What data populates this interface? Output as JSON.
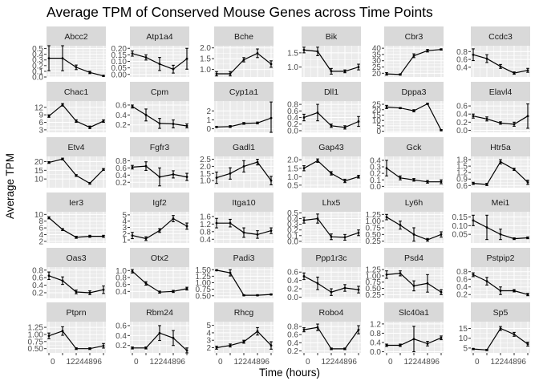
{
  "chart_data": {
    "type": "line",
    "title": "Average TPM of Conserved Mouse Genes across Time Points",
    "xlabel": "Time (hours)",
    "ylabel": "Average TPM",
    "x": [
      0,
      12,
      24,
      48,
      96
    ],
    "x_tick_labels": [
      "0",
      "12",
      "24",
      "48",
      "96"
    ],
    "facet_layout": {
      "rows": 6,
      "cols": 6
    },
    "styles": {
      "strip_bg": "#d9d9d9",
      "panel_bg": "#ebebeb",
      "grid": "#ffffff",
      "line": "#000000"
    },
    "panels": [
      {
        "gene": "Abcc2",
        "ylim": [
          0,
          0.55
        ],
        "yticks": [
          0.0,
          0.1,
          0.2,
          0.3,
          0.4,
          0.5
        ],
        "yticklabels": [
          "0.0",
          "0.1",
          "0.2",
          "0.3",
          "0.4",
          "0.5"
        ],
        "values": [
          0.33,
          0.33,
          0.17,
          0.08,
          0.02
        ],
        "errors": [
          0.22,
          0.22,
          0.04,
          0.02,
          0.01
        ]
      },
      {
        "gene": "Atp1a4",
        "ylim": [
          -0.02,
          0.22
        ],
        "yticks": [
          0.0,
          0.05,
          0.1,
          0.15,
          0.2
        ],
        "yticklabels": [
          "0.00",
          "0.05",
          "0.10",
          "0.15",
          "0.20"
        ],
        "values": [
          0.16,
          0.13,
          0.08,
          0.04,
          0.12
        ],
        "errors": [
          0.02,
          0.02,
          0.05,
          0.03,
          0.08
        ]
      },
      {
        "gene": "Bche",
        "ylim": [
          0.65,
          2.1
        ],
        "yticks": [
          1.0,
          1.5,
          2.0
        ],
        "yticklabels": [
          "1.0",
          "1.5",
          "2.0"
        ],
        "values": [
          0.8,
          0.8,
          1.45,
          1.75,
          1.25
        ],
        "errors": [
          0.1,
          0.1,
          0.1,
          0.2,
          0.15
        ]
      },
      {
        "gene": "Bik",
        "ylim": [
          0.65,
          1.75
        ],
        "yticks": [
          1.0,
          1.5
        ],
        "yticklabels": [
          "1.0",
          "1.5"
        ],
        "values": [
          1.6,
          1.55,
          0.85,
          0.85,
          1.0
        ],
        "errors": [
          0.1,
          0.15,
          0.1,
          0.05,
          0.1
        ]
      },
      {
        "gene": "Cbr3",
        "ylim": [
          17,
          42
        ],
        "yticks": [
          20,
          25,
          30,
          35,
          40
        ],
        "yticklabels": [
          "20",
          "25",
          "30",
          "35",
          "40"
        ],
        "values": [
          19.5,
          19,
          34,
          38,
          39
        ],
        "errors": [
          1,
          0.5,
          1.5,
          1,
          0.5
        ]
      },
      {
        "gene": "Ccdc3",
        "ylim": [
          0.15,
          0.95
        ],
        "yticks": [
          0.4,
          0.6,
          0.8
        ],
        "yticklabels": [
          "0.4",
          "0.6",
          "0.8"
        ],
        "values": [
          0.72,
          0.62,
          0.42,
          0.25,
          0.32
        ],
        "errors": [
          0.15,
          0.1,
          0.05,
          0.03,
          0.05
        ]
      },
      {
        "gene": "Chac1",
        "ylim": [
          2,
          14.5
        ],
        "yticks": [
          3,
          6,
          9,
          12
        ],
        "yticklabels": [
          "3",
          "6",
          "9",
          "12"
        ],
        "values": [
          8.5,
          13,
          6.5,
          4,
          6.5
        ],
        "errors": [
          0.5,
          0.5,
          0.5,
          0.5,
          0.5
        ]
      },
      {
        "gene": "Cpm",
        "ylim": [
          0.05,
          0.68
        ],
        "yticks": [
          0.2,
          0.4,
          0.6
        ],
        "yticklabels": [
          "0.2",
          "0.4",
          "0.6"
        ],
        "values": [
          0.57,
          0.4,
          0.23,
          0.22,
          0.18
        ],
        "errors": [
          0.03,
          0.12,
          0.1,
          0.08,
          0.04
        ]
      },
      {
        "gene": "Cyp1a1",
        "ylim": [
          -0.4,
          3.1
        ],
        "yticks": [
          0,
          1,
          2
        ],
        "yticklabels": [
          "0",
          "1",
          "2"
        ],
        "values": [
          0.2,
          0.25,
          0.6,
          0.65,
          1.2
        ],
        "errors": [
          0.05,
          0.1,
          0.1,
          0.1,
          1.8
        ]
      },
      {
        "gene": "Dll1",
        "ylim": [
          -0.05,
          0.9
        ],
        "yticks": [
          0.0,
          0.2,
          0.4,
          0.6,
          0.8
        ],
        "yticklabels": [
          "0.0",
          "0.2",
          "0.4",
          "0.6",
          "0.8"
        ],
        "values": [
          0.4,
          0.55,
          0.15,
          0.1,
          0.28
        ],
        "errors": [
          0.1,
          0.25,
          0.05,
          0.05,
          0.15
        ]
      },
      {
        "gene": "Dppa3",
        "ylim": [
          -1,
          28
        ],
        "yticks": [
          0,
          5,
          10,
          15,
          20,
          25
        ],
        "yticklabels": [
          "0",
          "5",
          "10",
          "15",
          "20",
          "25"
        ],
        "values": [
          22.5,
          21.5,
          19,
          25.5,
          1
        ],
        "errors": [
          1.5,
          0.5,
          1,
          0.5,
          0.5
        ]
      },
      {
        "gene": "Elavl4",
        "ylim": [
          -0.05,
          0.72
        ],
        "yticks": [
          0.0,
          0.2,
          0.4,
          0.6
        ],
        "yticklabels": [
          "0.0",
          "0.2",
          "0.4",
          "0.6"
        ],
        "values": [
          0.35,
          0.28,
          0.18,
          0.15,
          0.35
        ],
        "errors": [
          0.05,
          0.05,
          0.03,
          0.05,
          0.3
        ]
      },
      {
        "gene": "Etv4",
        "ylim": [
          5,
          23
        ],
        "yticks": [
          10,
          15,
          20
        ],
        "yticklabels": [
          "10",
          "15",
          "20"
        ],
        "values": [
          19.5,
          21.5,
          12,
          7.5,
          15.5
        ],
        "errors": [
          0.5,
          0.5,
          0.5,
          0.5,
          0.5
        ]
      },
      {
        "gene": "Fgfr3",
        "ylim": [
          0.05,
          0.92
        ],
        "yticks": [
          0.2,
          0.4,
          0.6,
          0.8
        ],
        "yticklabels": [
          "0.2",
          "0.4",
          "0.6",
          "0.8"
        ],
        "values": [
          0.62,
          0.65,
          0.35,
          0.42,
          0.35
        ],
        "errors": [
          0.05,
          0.12,
          0.25,
          0.1,
          0.1
        ]
      },
      {
        "gene": "Gadl1",
        "ylim": [
          0.5,
          2.7
        ],
        "yticks": [
          1.0,
          1.5,
          2.0,
          2.5
        ],
        "yticklabels": [
          "1.0",
          "1.5",
          "2.0",
          "2.5"
        ],
        "values": [
          1.2,
          1.5,
          2.0,
          2.3,
          1.0
        ],
        "errors": [
          0.4,
          0.4,
          0.4,
          0.2,
          0.3
        ]
      },
      {
        "gene": "Gap43",
        "ylim": [
          0.35,
          2.2
        ],
        "yticks": [
          0.5,
          1.0,
          1.5,
          2.0
        ],
        "yticklabels": [
          "0.5",
          "1.0",
          "1.5",
          "2.0"
        ],
        "values": [
          1.5,
          1.95,
          1.2,
          0.75,
          1.0
        ],
        "errors": [
          0.15,
          0.1,
          0.1,
          0.1,
          0.08
        ]
      },
      {
        "gene": "Gck",
        "ylim": [
          -0.02,
          0.46
        ],
        "yticks": [
          0.0,
          0.1,
          0.2,
          0.3,
          0.4
        ],
        "yticklabels": [
          "0.0",
          "0.1",
          "0.2",
          "0.3",
          "0.4"
        ],
        "values": [
          0.28,
          0.13,
          0.1,
          0.07,
          0.07
        ],
        "errors": [
          0.12,
          0.03,
          0.02,
          0.02,
          0.03
        ]
      },
      {
        "gene": "Htr5a",
        "ylim": [
          0.5,
          1.95
        ],
        "yticks": [
          0.6,
          0.9,
          1.2,
          1.5,
          1.8
        ],
        "yticklabels": [
          "0.6",
          "0.9",
          "1.2",
          "1.5",
          "1.8"
        ],
        "values": [
          0.7,
          0.65,
          1.7,
          1.35,
          0.75
        ],
        "errors": [
          0.05,
          0.05,
          0.1,
          0.05,
          0.1
        ]
      },
      {
        "gene": "Ier3",
        "ylim": [
          1.5,
          10.8
        ],
        "yticks": [
          2,
          4,
          6,
          8,
          10
        ],
        "yticklabels": [
          "2",
          "4",
          "6",
          "8",
          "10"
        ],
        "values": [
          9,
          5.5,
          3.2,
          3.5,
          3.5
        ],
        "errors": [
          0.3,
          0.3,
          0.3,
          0.3,
          0.3
        ]
      },
      {
        "gene": "Igf2",
        "ylim": [
          0.5,
          5.5
        ],
        "yticks": [
          1,
          2,
          3,
          4,
          5
        ],
        "yticklabels": [
          "1",
          "2",
          "3",
          "4",
          "5"
        ],
        "values": [
          1.7,
          1.2,
          2.5,
          4.4,
          3.2
        ],
        "errors": [
          0.5,
          0.3,
          0.3,
          0.5,
          0.5
        ]
      },
      {
        "gene": "Itga10",
        "ylim": [
          0.2,
          1.85
        ],
        "yticks": [
          0.4,
          0.8,
          1.2,
          1.6
        ],
        "yticklabels": [
          "0.4",
          "0.8",
          "1.2",
          "1.6"
        ],
        "values": [
          1.25,
          1.25,
          0.75,
          0.65,
          0.85
        ],
        "errors": [
          0.25,
          0.2,
          0.25,
          0.2,
          0.15
        ]
      },
      {
        "gene": "Lhx5",
        "ylim": [
          -0.03,
          0.52
        ],
        "yticks": [
          0.0,
          0.1,
          0.2,
          0.3,
          0.4,
          0.5
        ],
        "yticklabels": [
          "0.0",
          "0.1",
          "0.2",
          "0.3",
          "0.4",
          "0.5"
        ],
        "values": [
          0.37,
          0.4,
          0.08,
          0.07,
          0.15
        ],
        "errors": [
          0.05,
          0.08,
          0.05,
          0.05,
          0.05
        ]
      },
      {
        "gene": "Ly6h",
        "ylim": [
          0.18,
          1.35
        ],
        "yticks": [
          0.25,
          0.5,
          0.75,
          1.0,
          1.25
        ],
        "yticklabels": [
          "0.25",
          "0.50",
          "0.75",
          "1.00",
          "1.25"
        ],
        "values": [
          1.15,
          0.85,
          0.5,
          0.3,
          0.5
        ],
        "errors": [
          0.1,
          0.15,
          0.25,
          0.05,
          0.1
        ]
      },
      {
        "gene": "Mei1",
        "ylim": [
          0.0,
          0.18
        ],
        "yticks": [
          0.05,
          0.1,
          0.15
        ],
        "yticklabels": [
          "0.05",
          "0.10",
          "0.15"
        ],
        "values": [
          0.13,
          0.09,
          0.05,
          0.025,
          0.03
        ],
        "errors": [
          0.03,
          0.07,
          0.03,
          0.005,
          0.005
        ]
      },
      {
        "gene": "Oas3",
        "ylim": [
          0.05,
          0.88
        ],
        "yticks": [
          0.2,
          0.4,
          0.6,
          0.8
        ],
        "yticklabels": [
          "0.2",
          "0.4",
          "0.6",
          "0.8"
        ],
        "values": [
          0.65,
          0.52,
          0.22,
          0.2,
          0.28
        ],
        "errors": [
          0.1,
          0.1,
          0.05,
          0.05,
          0.1
        ]
      },
      {
        "gene": "Otx2",
        "ylim": [
          0.2,
          1.1
        ],
        "yticks": [
          0.4,
          0.6,
          0.8,
          1.0
        ],
        "yticklabels": [
          "0.4",
          "0.6",
          "0.8",
          "1.0"
        ],
        "values": [
          0.98,
          0.63,
          0.38,
          0.4,
          0.48
        ],
        "errors": [
          0.05,
          0.05,
          0.03,
          0.03,
          0.04
        ]
      },
      {
        "gene": "Padi3",
        "ylim": [
          0.4,
          1.6
        ],
        "yticks": [
          0.5,
          0.75,
          1.0,
          1.25,
          1.5
        ],
        "yticklabels": [
          "0.50",
          "0.75",
          "1.00",
          "1.25",
          "1.50"
        ],
        "values": [
          1.48,
          1.38,
          0.52,
          0.52,
          0.55
        ],
        "errors": [
          0.02,
          0.12,
          0.02,
          0.02,
          0.02
        ]
      },
      {
        "gene": "Ppp1r3c",
        "ylim": [
          -0.03,
          0.72
        ],
        "yticks": [
          0.0,
          0.2,
          0.4,
          0.6
        ],
        "yticklabels": [
          "0.0",
          "0.2",
          "0.4",
          "0.6"
        ],
        "values": [
          0.5,
          0.33,
          0.12,
          0.22,
          0.18
        ],
        "errors": [
          0.08,
          0.15,
          0.08,
          0.08,
          0.08
        ]
      },
      {
        "gene": "Psd4",
        "ylim": [
          0.1,
          1.35
        ],
        "yticks": [
          0.25,
          0.5,
          0.75,
          1.0,
          1.25
        ],
        "yticklabels": [
          "0.25",
          "0.50",
          "0.75",
          "1.00",
          "1.25"
        ],
        "values": [
          1.05,
          1.1,
          0.6,
          0.7,
          0.35
        ],
        "errors": [
          0.15,
          0.1,
          0.2,
          0.35,
          0.1
        ]
      },
      {
        "gene": "Pstpip2",
        "ylim": [
          0.1,
          0.92
        ],
        "yticks": [
          0.2,
          0.4,
          0.6,
          0.8
        ],
        "yticklabels": [
          "0.2",
          "0.4",
          "0.6",
          "0.8"
        ],
        "values": [
          0.72,
          0.55,
          0.3,
          0.3,
          0.2
        ],
        "errors": [
          0.05,
          0.1,
          0.1,
          0.03,
          0.03
        ]
      },
      {
        "gene": "Ptprn",
        "ylim": [
          0.35,
          1.45
        ],
        "yticks": [
          0.5,
          0.75,
          1.0,
          1.25
        ],
        "yticklabels": [
          "0.50",
          "0.75",
          "1.00",
          "1.25"
        ],
        "values": [
          0.95,
          1.12,
          0.5,
          0.5,
          0.6
        ],
        "errors": [
          0.1,
          0.15,
          0.03,
          0.03,
          0.08
        ]
      },
      {
        "gene": "Rbm24",
        "ylim": [
          0.05,
          0.68
        ],
        "yticks": [
          0.2,
          0.4,
          0.6
        ],
        "yticklabels": [
          "0.2",
          "0.4",
          "0.6"
        ],
        "values": [
          0.15,
          0.15,
          0.45,
          0.35,
          0.1
        ],
        "errors": [
          0.02,
          0.02,
          0.15,
          0.15,
          0.05
        ]
      },
      {
        "gene": "Rhcg",
        "ylim": [
          1.3,
          5.5
        ],
        "yticks": [
          2,
          3,
          4,
          5
        ],
        "yticklabels": [
          "2",
          "3",
          "4",
          "5"
        ],
        "values": [
          2.0,
          2.3,
          2.8,
          4.2,
          2.3
        ],
        "errors": [
          0.2,
          0.2,
          0.2,
          0.5,
          0.5
        ]
      },
      {
        "gene": "Robo4",
        "ylim": [
          0.15,
          0.92
        ],
        "yticks": [
          0.2,
          0.4,
          0.6,
          0.8
        ],
        "yticklabels": [
          "0.2",
          "0.4",
          "0.6",
          "0.8"
        ],
        "values": [
          0.72,
          0.78,
          0.25,
          0.25,
          0.72
        ],
        "errors": [
          0.05,
          0.08,
          0.02,
          0.02,
          0.1
        ]
      },
      {
        "gene": "Slc40a1",
        "ylim": [
          -0.05,
          1.3
        ],
        "yticks": [
          0.0,
          0.4,
          0.8,
          1.2
        ],
        "yticklabels": [
          "0.0",
          "0.4",
          "0.8",
          "1.2"
        ],
        "values": [
          0.28,
          0.28,
          0.55,
          0.35,
          0.6
        ],
        "errors": [
          0.05,
          0.05,
          0.55,
          0.1,
          0.08
        ]
      },
      {
        "gene": "Sp5",
        "ylim": [
          2.5,
          18.5
        ],
        "yticks": [
          5,
          10,
          15
        ],
        "yticklabels": [
          "5",
          "10",
          "15"
        ],
        "values": [
          4.5,
          4.0,
          15.0,
          12.0,
          7.0
        ],
        "errors": [
          0.3,
          0.3,
          1.0,
          1.0,
          1.0
        ]
      }
    ]
  }
}
